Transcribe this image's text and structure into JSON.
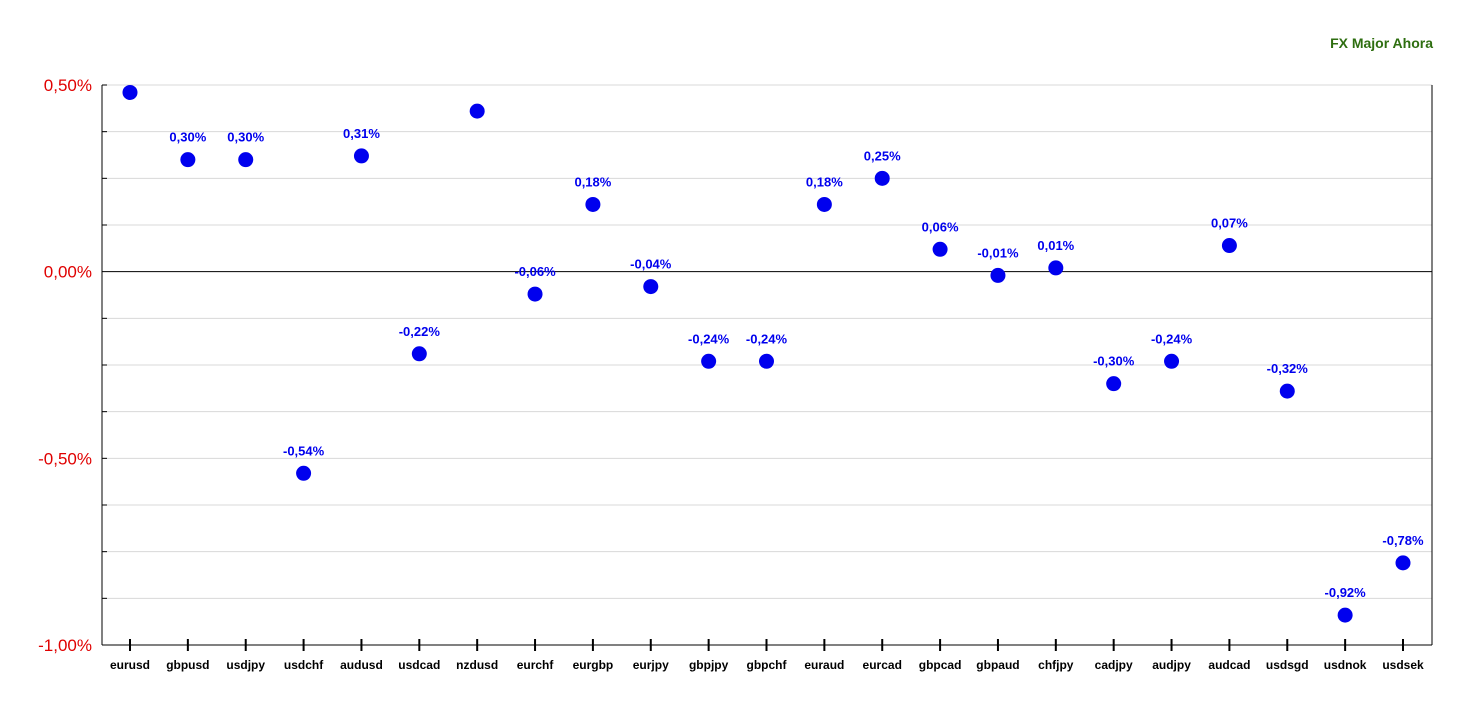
{
  "chart_data": {
    "type": "scatter",
    "title": "FX Major Ahora",
    "categories": [
      "eurusd",
      "gbpusd",
      "usdjpy",
      "usdchf",
      "audusd",
      "usdcad",
      "nzdusd",
      "eurchf",
      "eurgbp",
      "eurjpy",
      "gbpjpy",
      "gbpchf",
      "euraud",
      "eurcad",
      "gbpcad",
      "gbpaud",
      "chfjpy",
      "cadjpy",
      "audjpy",
      "audcad",
      "usdsgd",
      "usdnok",
      "usdsek"
    ],
    "series": [
      {
        "values": [
          0.48,
          0.3,
          0.3,
          -0.54,
          0.31,
          -0.22,
          0.43,
          -0.06,
          0.18,
          -0.04,
          -0.24,
          -0.24,
          0.18,
          0.25,
          0.06,
          -0.01,
          0.01,
          -0.3,
          -0.24,
          0.07,
          -0.32,
          -0.92,
          -0.78
        ],
        "labels": [
          "",
          "0,30%",
          "0,30%",
          "-0,54%",
          "0,31%",
          "-0,22%",
          "",
          "-0,06%",
          "0,18%",
          "-0,04%",
          "-0,24%",
          "-0,24%",
          "0,18%",
          "0,25%",
          "0,06%",
          "-0,01%",
          "0,01%",
          "-0,30%",
          "-0,24%",
          "0,07%",
          "-0,32%",
          "-0,92%",
          "-0,78%"
        ]
      }
    ],
    "ylim": [
      -1.0,
      0.5
    ],
    "yticks": [
      0.5,
      0.0,
      -0.5,
      -1.0
    ],
    "ytick_labels": [
      "0,50%",
      "0,00%",
      "-0,50%",
      "-1,00%"
    ],
    "xlabel": "",
    "ylabel": "",
    "grid": true,
    "colors": {
      "point": "#0000ee",
      "label": "#0000ee",
      "ytick": "#e00000",
      "title": "#2e6e10"
    }
  }
}
